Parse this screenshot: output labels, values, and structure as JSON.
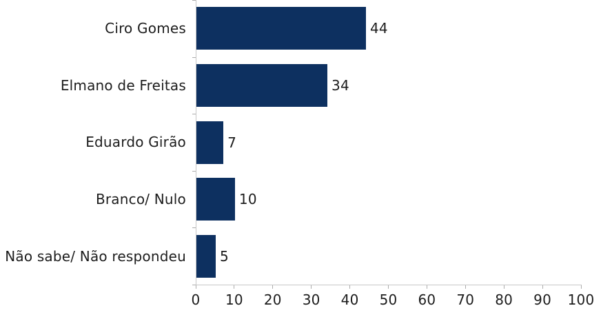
{
  "chart_data": {
    "type": "bar",
    "orientation": "horizontal",
    "categories": [
      "Ciro Gomes",
      "Elmano de Freitas",
      "Eduardo Girão",
      "Branco/ Nulo",
      "Não sabe/ Não respondeu"
    ],
    "values": [
      44,
      34,
      7,
      10,
      5
    ],
    "value_labels": [
      "44",
      "34",
      "7",
      "10",
      "5"
    ],
    "x_ticks": [
      0,
      10,
      20,
      30,
      40,
      50,
      60,
      70,
      80,
      90,
      100
    ],
    "x_tick_labels": [
      "0",
      "10",
      "20",
      "30",
      "40",
      "50",
      "60",
      "70",
      "80",
      "90",
      "100"
    ],
    "xlim": [
      0,
      100
    ],
    "grid": false,
    "legend": "none",
    "title": "",
    "xlabel": "",
    "ylabel": "",
    "colors": {
      "bar": "#0d3060",
      "axis_line": "#c6c6c6",
      "tick_mark": "#ababab",
      "text": "#1c1c1c",
      "background": "#ffffff"
    }
  }
}
